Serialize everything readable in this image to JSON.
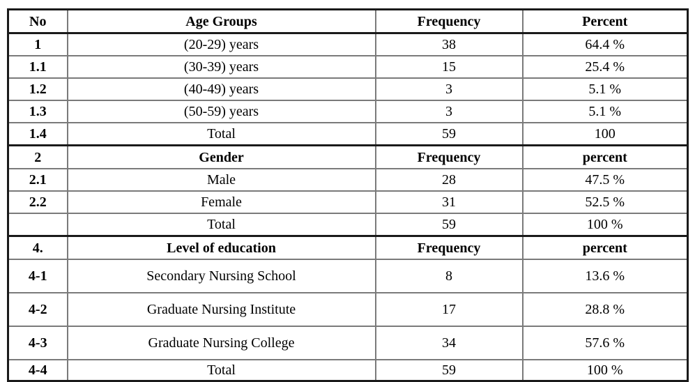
{
  "table": {
    "columns": [
      "No",
      "Age Groups",
      "Frequency",
      "Percent"
    ],
    "rows": [
      {
        "no": "No",
        "label": "Age Groups",
        "frequency": "Frequency",
        "percent": "Percent"
      },
      {
        "no": "1",
        "label": "(20-29) years",
        "frequency": "38",
        "percent": "64.4 %"
      },
      {
        "no": "1.1",
        "label": "(30-39) years",
        "frequency": "15",
        "percent": "25.4 %"
      },
      {
        "no": "1.2",
        "label": "(40-49) years",
        "frequency": "3",
        "percent": "5.1 %"
      },
      {
        "no": "1.3",
        "label": "(50-59) years",
        "frequency": "3",
        "percent": "5.1 %"
      },
      {
        "no": "1.4",
        "label": "Total",
        "frequency": "59",
        "percent": "100"
      },
      {
        "no": "2",
        "label": "Gender",
        "frequency": "Frequency",
        "percent": "percent"
      },
      {
        "no": "2.1",
        "label": "Male",
        "frequency": "28",
        "percent": "47.5 %"
      },
      {
        "no": "2.2",
        "label": "Female",
        "frequency": "31",
        "percent": "52.5 %"
      },
      {
        "no": "",
        "label": "Total",
        "frequency": "59",
        "percent": "100 %"
      },
      {
        "no": "4.",
        "label": "Level of education",
        "frequency": "Frequency",
        "percent": "percent"
      },
      {
        "no": "4-1",
        "label": "Secondary Nursing School",
        "frequency": "8",
        "percent": "13.6 %"
      },
      {
        "no": "4-2",
        "label": "Graduate Nursing Institute",
        "frequency": "17",
        "percent": "28.8 %"
      },
      {
        "no": "4-3",
        "label": "Graduate Nursing College",
        "frequency": "34",
        "percent": "57.6 %"
      },
      {
        "no": "4-4",
        "label": "Total",
        "frequency": "59",
        "percent": "100 %"
      }
    ],
    "colors": {
      "outer_border": "#1a1a1a",
      "inner_border": "#7a7a7a",
      "text": "#000000",
      "background": "#ffffff"
    }
  }
}
